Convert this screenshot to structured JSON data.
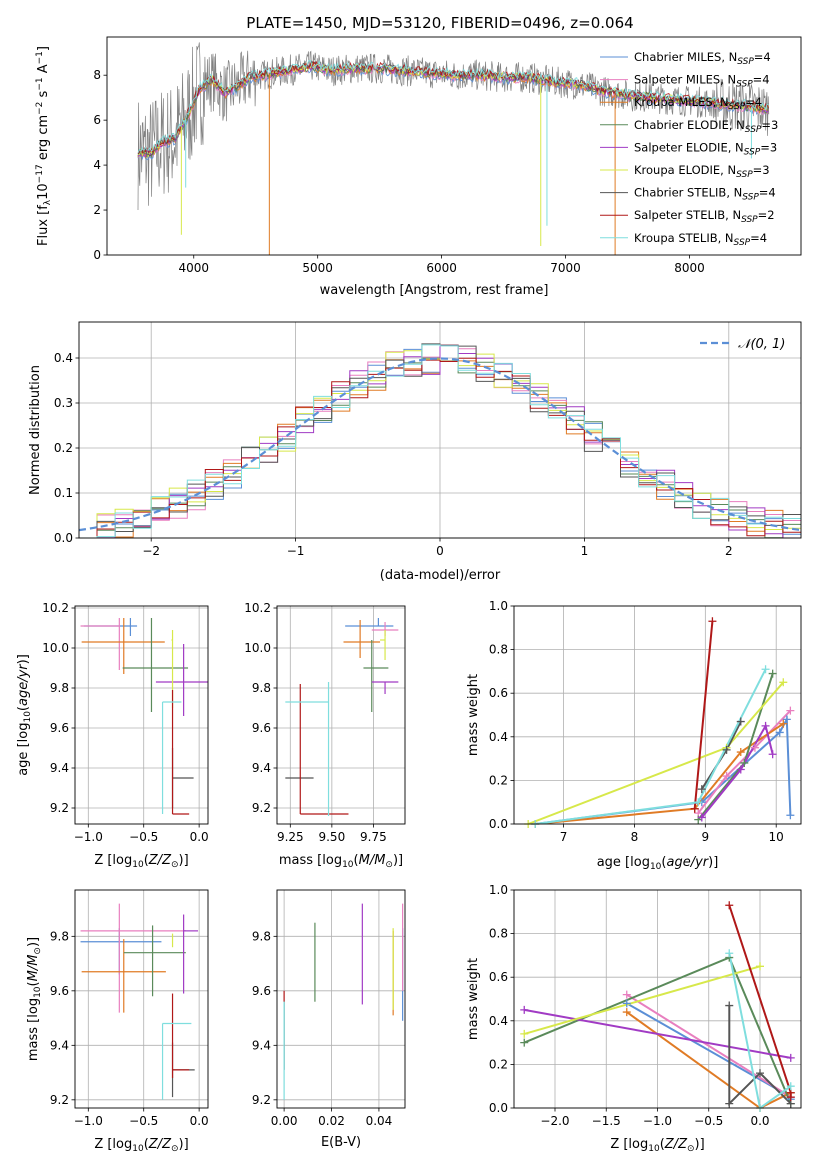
{
  "figure_title": "PLATE=1450, MJD=53120, FIBERID=0496, z=0.064",
  "colors": {
    "Chabrier MILES": "#5b8fd6",
    "Salpeter MILES": "#e87fbf",
    "Kroupa MILES": "#e07b25",
    "Chabrier ELODIE": "#5a8a5a",
    "Salpeter ELODIE": "#a13bc4",
    "Kroupa ELODIE": "#d7e84a",
    "Chabrier STELIB": "#555555",
    "Salpeter STELIB": "#b01818",
    "Kroupa STELIB": "#7fdede",
    "data": "#808080",
    "normal": "#5b8fd6"
  },
  "legend_labels": [
    {
      "key": "Chabrier MILES",
      "text": "Chabrier MILES, N",
      "nssp": "4"
    },
    {
      "key": "Salpeter MILES",
      "text": "Salpeter MILES, N",
      "nssp": "4"
    },
    {
      "key": "Kroupa MILES",
      "text": "Kroupa MILES, N",
      "nssp": "4"
    },
    {
      "key": "Chabrier ELODIE",
      "text": "Chabrier ELODIE, N",
      "nssp": "3"
    },
    {
      "key": "Salpeter ELODIE",
      "text": "Salpeter ELODIE, N",
      "nssp": "3"
    },
    {
      "key": "Kroupa ELODIE",
      "text": "Kroupa ELODIE, N",
      "nssp": "3"
    },
    {
      "key": "Chabrier STELIB",
      "text": "Chabrier STELIB, N",
      "nssp": "4"
    },
    {
      "key": "Salpeter STELIB",
      "text": "Salpeter STELIB, N",
      "nssp": "2"
    },
    {
      "key": "Kroupa STELIB",
      "text": "Kroupa STELIB, N",
      "nssp": "4"
    }
  ],
  "chart_data": [
    {
      "id": "spectrum",
      "type": "line",
      "xlabel": "wavelength [Angstrom, rest frame]",
      "ylabel": "Flux [f",
      "ylabel_parts": [
        "Flux [f",
        "λ",
        "10",
        "-17",
        " erg cm",
        "-2",
        " s",
        "-1",
        " A",
        "-1",
        "]"
      ],
      "xlim": [
        3300,
        8900
      ],
      "ylim": [
        0,
        9.7
      ],
      "xticks": [
        4000,
        5000,
        6000,
        7000,
        8000
      ],
      "yticks": [
        0,
        2,
        4,
        6,
        8
      ],
      "continuum": {
        "x": [
          3550,
          3650,
          3750,
          3850,
          3950,
          4050,
          4150,
          4250,
          4350,
          4450,
          4550,
          4650,
          4750,
          4850,
          4950,
          5100,
          5300,
          5500,
          5700,
          5900,
          6100,
          6300,
          6500,
          6700,
          6900,
          7100,
          7300,
          7500,
          7700,
          7900,
          8100,
          8300,
          8500,
          8600
        ],
        "y": [
          4.6,
          4.5,
          5.0,
          5.2,
          6.2,
          7.4,
          7.8,
          7.2,
          7.5,
          7.9,
          8.0,
          8.1,
          8.2,
          8.3,
          8.4,
          8.2,
          8.3,
          8.3,
          8.2,
          8.1,
          8.0,
          8.0,
          7.9,
          7.9,
          7.7,
          7.6,
          7.3,
          7.1,
          7.0,
          6.9,
          6.8,
          6.7,
          6.6,
          6.5
        ]
      },
      "absorption_lines": [
        {
          "x": 3900,
          "min": 0.9,
          "series": "Kroupa ELODIE"
        },
        {
          "x": 3935,
          "min": 3.0,
          "series": "Kroupa STELIB"
        },
        {
          "x": 4610,
          "min": 0.0,
          "series": "Kroupa MILES"
        },
        {
          "x": 6800,
          "min": 0.4,
          "series": "Kroupa ELODIE"
        },
        {
          "x": 6850,
          "min": 1.3,
          "series": "Kroupa STELIB"
        },
        {
          "x": 7400,
          "min": 0.0,
          "series": "Kroupa MILES"
        },
        {
          "x": 8500,
          "min": 4.3,
          "series": "Kroupa STELIB"
        }
      ]
    },
    {
      "id": "residuals",
      "type": "histogram",
      "xlabel": "(data-model)/error",
      "ylabel": "Normed distribution",
      "xlim": [
        -2.5,
        2.5
      ],
      "ylim": [
        0,
        0.48
      ],
      "xticks": [
        -2,
        -1,
        0,
        1,
        2
      ],
      "yticks": [
        0.0,
        0.1,
        0.2,
        0.3,
        0.4
      ],
      "legend": "𝒩(0, 1)",
      "normal_curve": {
        "x_range": [
          -2.5,
          2.5
        ],
        "mean": 0,
        "std": 1
      }
    },
    {
      "id": "age_vs_Z",
      "type": "errorbar",
      "xlabel": "Z [log",
      "xlabel_parts": [
        "Z [log",
        "10",
        "(Z/Z",
        "⊙",
        ")]"
      ],
      "ylabel": "age  [log",
      "ylabel_parts": [
        "age  [log",
        "10",
        "(age/yr)]"
      ],
      "xlim": [
        -1.12,
        0.08
      ],
      "ylim": [
        9.12,
        10.21
      ],
      "xticks": [
        -1.0,
        -0.5,
        0.0
      ],
      "yticks": [
        9.2,
        9.4,
        9.6,
        9.8,
        10.0,
        10.2
      ],
      "points": [
        {
          "series": "Chabrier MILES",
          "x": -0.62,
          "xerr": [
            0.42,
            0.06
          ],
          "y": 10.11,
          "yerr": [
            0.05,
            0.04
          ]
        },
        {
          "series": "Salpeter MILES",
          "x": -0.72,
          "xerr": [
            0.35,
            0.0
          ],
          "y": 10.11,
          "yerr": [
            0.22,
            0.04
          ]
        },
        {
          "series": "Kroupa MILES",
          "x": -0.68,
          "xerr": [
            0.38,
            0.37
          ],
          "y": 10.03,
          "yerr": [
            0.16,
            0.12
          ]
        },
        {
          "series": "Chabrier ELODIE",
          "x": -0.43,
          "xerr": [
            0.26,
            0.33
          ],
          "y": 9.9,
          "yerr": [
            0.22,
            0.25
          ]
        },
        {
          "series": "Salpeter ELODIE",
          "x": -0.14,
          "xerr": [
            0.25,
            0.26
          ],
          "y": 9.83,
          "yerr": [
            0.17,
            0.19
          ]
        },
        {
          "series": "Kroupa ELODIE",
          "x": -0.24,
          "xerr": [
            0.01,
            0.0
          ],
          "y": 10.04,
          "yerr": [
            0.34,
            0.05
          ]
        },
        {
          "series": "Chabrier STELIB",
          "x": -0.24,
          "xerr": [
            0.0,
            0.19
          ],
          "y": 9.35,
          "yerr": [
            0.15,
            0.15
          ]
        },
        {
          "series": "Salpeter STELIB",
          "x": -0.24,
          "xerr": [
            0.0,
            0.15
          ],
          "y": 9.17,
          "yerr": [
            0.0,
            0.62
          ]
        },
        {
          "series": "Kroupa STELIB",
          "x": -0.33,
          "xerr": [
            0.0,
            0.17
          ],
          "y": 9.73,
          "yerr": [
            0.56,
            0.0
          ]
        }
      ]
    },
    {
      "id": "age_vs_mass",
      "type": "errorbar",
      "xlabel": "mass [log",
      "xlabel_parts": [
        "mass [log",
        "10",
        "(M/M",
        "⊙",
        ")]"
      ],
      "xlim": [
        9.17,
        9.94
      ],
      "ylim": [
        9.12,
        10.21
      ],
      "xticks": [
        9.25,
        9.5,
        9.75
      ],
      "yticks": [
        9.2,
        9.4,
        9.6,
        9.8,
        10.0,
        10.2
      ],
      "points": [
        {
          "series": "Chabrier MILES",
          "x": 9.78,
          "xerr": [
            0.2,
            0.09
          ],
          "y": 10.11,
          "yerr": [
            0.0,
            0.04
          ]
        },
        {
          "series": "Salpeter MILES",
          "x": 9.82,
          "xerr": [
            0.08,
            0.08
          ],
          "y": 10.09,
          "yerr": [
            0.03,
            0.04
          ]
        },
        {
          "series": "Kroupa MILES",
          "x": 9.67,
          "xerr": [
            0.1,
            0.12
          ],
          "y": 10.03,
          "yerr": [
            0.08,
            0.11
          ]
        },
        {
          "series": "Chabrier ELODIE",
          "x": 9.74,
          "xerr": [
            0.05,
            0.1
          ],
          "y": 9.9,
          "yerr": [
            0.22,
            0.14
          ]
        },
        {
          "series": "Salpeter ELODIE",
          "x": 9.82,
          "xerr": [
            0.08,
            0.08
          ],
          "y": 9.83,
          "yerr": [
            0.06,
            0.0
          ]
        },
        {
          "series": "Kroupa ELODIE",
          "x": 9.82,
          "xerr": [
            0.03,
            0.0
          ],
          "y": 10.04,
          "yerr": [
            0.1,
            0.05
          ]
        },
        {
          "series": "Chabrier STELIB",
          "x": 9.31,
          "xerr": [
            0.09,
            0.08
          ],
          "y": 9.35,
          "yerr": [
            0.0,
            0.0
          ]
        },
        {
          "series": "Salpeter STELIB",
          "x": 9.31,
          "xerr": [
            0.0,
            0.29
          ],
          "y": 9.17,
          "yerr": [
            0.0,
            0.65
          ]
        },
        {
          "series": "Kroupa STELIB",
          "x": 9.48,
          "xerr": [
            0.26,
            0.0
          ],
          "y": 9.73,
          "yerr": [
            0.57,
            0.1
          ]
        }
      ]
    },
    {
      "id": "weight_vs_age",
      "type": "line",
      "xlabel": "age  [log",
      "xlabel_parts": [
        "age  [log",
        "10",
        "(age/yr)]"
      ],
      "ylabel": "mass weight",
      "xlim": [
        6.3,
        10.35
      ],
      "ylim": [
        0,
        1.0
      ],
      "xticks": [
        7,
        8,
        9,
        10
      ],
      "yticks": [
        0.0,
        0.2,
        0.4,
        0.6,
        0.8,
        1.0
      ],
      "series": [
        {
          "name": "Chabrier MILES",
          "x": [
            6.6,
            8.95,
            10.05,
            10.15,
            10.2
          ],
          "y": [
            0.0,
            0.1,
            0.42,
            0.48,
            0.04
          ]
        },
        {
          "name": "Salpeter MILES",
          "x": [
            8.9,
            9.3,
            9.7,
            10.2
          ],
          "y": [
            0.05,
            0.22,
            0.35,
            0.52
          ]
        },
        {
          "name": "Kroupa MILES",
          "x": [
            6.6,
            8.85,
            9.5,
            10.1
          ],
          "y": [
            0.0,
            0.07,
            0.33,
            0.46
          ]
        },
        {
          "name": "Chabrier ELODIE",
          "x": [
            8.9,
            9.55,
            9.95
          ],
          "y": [
            0.02,
            0.28,
            0.69
          ]
        },
        {
          "name": "Salpeter ELODIE",
          "x": [
            8.95,
            9.5,
            9.85,
            9.95
          ],
          "y": [
            0.03,
            0.25,
            0.45,
            0.32
          ]
        },
        {
          "name": "Kroupa ELODIE",
          "x": [
            6.5,
            9.3,
            10.1
          ],
          "y": [
            0.0,
            0.35,
            0.65
          ]
        },
        {
          "name": "Chabrier STELIB",
          "x": [
            8.95,
            9.3,
            9.5
          ],
          "y": [
            0.16,
            0.34,
            0.47
          ]
        },
        {
          "name": "Salpeter STELIB",
          "x": [
            8.85,
            9.1
          ],
          "y": [
            0.07,
            0.93
          ]
        },
        {
          "name": "Kroupa STELIB",
          "x": [
            6.6,
            8.9,
            9.85
          ],
          "y": [
            0.0,
            0.1,
            0.71
          ]
        }
      ]
    },
    {
      "id": "mass_vs_Z",
      "type": "errorbar",
      "xlabel": "Z [log",
      "xlabel_parts": [
        "Z [log",
        "10",
        "(Z/Z",
        "⊙",
        ")]"
      ],
      "ylabel": "mass [log",
      "ylabel_parts": [
        "mass [log",
        "10",
        "(M/M",
        "⊙",
        ")]"
      ],
      "xlim": [
        -1.12,
        0.08
      ],
      "ylim": [
        9.17,
        9.97
      ],
      "xticks": [
        -1.0,
        -0.5,
        0.0
      ],
      "yticks": [
        9.2,
        9.4,
        9.6,
        9.8
      ],
      "points": [
        {
          "series": "Chabrier MILES",
          "x": -0.72,
          "xerr": [
            0.35,
            0.38
          ],
          "y": 9.78,
          "yerr": [
            0.12,
            0.05
          ]
        },
        {
          "series": "Salpeter MILES",
          "x": -0.72,
          "xerr": [
            0.35,
            0.6
          ],
          "y": 9.82,
          "yerr": [
            0.3,
            0.1
          ]
        },
        {
          "series": "Kroupa MILES",
          "x": -0.68,
          "xerr": [
            0.38,
            0.38
          ],
          "y": 9.67,
          "yerr": [
            0.15,
            0.12
          ]
        },
        {
          "series": "Chabrier ELODIE",
          "x": -0.42,
          "xerr": [
            0.26,
            0.3
          ],
          "y": 9.74,
          "yerr": [
            0.16,
            0.1
          ]
        },
        {
          "series": "Salpeter ELODIE",
          "x": -0.14,
          "xerr": [
            0.0,
            0.13
          ],
          "y": 9.82,
          "yerr": [
            0.23,
            0.06
          ]
        },
        {
          "series": "Kroupa ELODIE",
          "x": -0.24,
          "xerr": [
            0.0,
            0.0
          ],
          "y": 9.81,
          "yerr": [
            0.05,
            0.0
          ]
        },
        {
          "series": "Chabrier STELIB",
          "x": -0.24,
          "xerr": [
            0.0,
            0.2
          ],
          "y": 9.31,
          "yerr": [
            0.1,
            0.1
          ]
        },
        {
          "series": "Salpeter STELIB",
          "x": -0.24,
          "xerr": [
            0.0,
            0.15
          ],
          "y": 9.31,
          "yerr": [
            0.03,
            0.28
          ]
        },
        {
          "series": "Kroupa STELIB",
          "x": -0.33,
          "xerr": [
            0.0,
            0.26
          ],
          "y": 9.48,
          "yerr": [
            0.28,
            0.0
          ]
        }
      ]
    },
    {
      "id": "mass_vs_EBV",
      "type": "errorbar",
      "xlabel": "E(B-V)",
      "xlim": [
        -0.003,
        0.051
      ],
      "ylim": [
        9.17,
        9.97
      ],
      "xticks": [
        0.0,
        0.02,
        0.04
      ],
      "yticks": [
        9.2,
        9.4,
        9.6,
        9.8
      ],
      "points": [
        {
          "series": "Chabrier MILES",
          "x": 0.05,
          "yrange": [
            9.49,
            9.83
          ]
        },
        {
          "series": "Salpeter MILES",
          "x": 0.05,
          "yrange": [
            9.6,
            9.92
          ]
        },
        {
          "series": "Kroupa MILES",
          "x": 0.046,
          "yrange": [
            9.51,
            9.82
          ]
        },
        {
          "series": "Chabrier ELODIE",
          "x": 0.013,
          "yrange": [
            9.56,
            9.85
          ]
        },
        {
          "series": "Salpeter ELODIE",
          "x": 0.033,
          "yrange": [
            9.55,
            9.92
          ]
        },
        {
          "series": "Kroupa ELODIE",
          "x": 0.046,
          "yrange": [
            9.53,
            9.83
          ]
        },
        {
          "series": "Chabrier STELIB",
          "x": 0.0,
          "yrange": [
            9.31,
            9.56
          ]
        },
        {
          "series": "Salpeter STELIB",
          "x": 0.0,
          "yrange": [
            9.56,
            9.6
          ]
        },
        {
          "series": "Kroupa STELIB",
          "x": 0.0,
          "yrange": [
            9.2,
            9.56
          ]
        }
      ]
    },
    {
      "id": "weight_vs_Z",
      "type": "line",
      "xlabel": "Z [log",
      "xlabel_parts": [
        "Z [log",
        "10",
        "(Z/Z",
        "⊙",
        ")]"
      ],
      "ylabel": "mass weight",
      "xlim": [
        -2.4,
        0.4
      ],
      "ylim": [
        0,
        1.0
      ],
      "xticks": [
        -2.0,
        -1.5,
        -1.0,
        -0.5,
        0.0
      ],
      "yticks": [
        0.0,
        0.2,
        0.4,
        0.6,
        0.8,
        1.0
      ],
      "series": [
        {
          "name": "Chabrier MILES",
          "x": [
            -1.3,
            0.3,
            0.3
          ],
          "y": [
            0.48,
            0.05,
            0.04
          ]
        },
        {
          "name": "Salpeter MILES",
          "x": [
            -1.3,
            0.3
          ],
          "y": [
            0.52,
            0.05
          ]
        },
        {
          "name": "Kroupa MILES",
          "x": [
            -1.3,
            -0.0,
            0.3
          ],
          "y": [
            0.44,
            0.0,
            0.07
          ]
        },
        {
          "name": "Chabrier ELODIE",
          "x": [
            -2.3,
            -0.3,
            0.3
          ],
          "y": [
            0.3,
            0.69,
            0.02
          ]
        },
        {
          "name": "Salpeter ELODIE",
          "x": [
            -2.3,
            0.3
          ],
          "y": [
            0.45,
            0.23
          ]
        },
        {
          "name": "Kroupa ELODIE",
          "x": [
            -2.3,
            0.0
          ],
          "y": [
            0.34,
            0.65
          ]
        },
        {
          "name": "Chabrier STELIB",
          "x": [
            -0.3,
            -0.3,
            0.0,
            0.3
          ],
          "y": [
            0.47,
            0.02,
            0.16,
            0.02
          ]
        },
        {
          "name": "Salpeter STELIB",
          "x": [
            -0.3,
            0.3,
            0.3
          ],
          "y": [
            0.93,
            0.07,
            0.05
          ]
        },
        {
          "name": "Kroupa STELIB",
          "x": [
            -0.3,
            0.0,
            0.3
          ],
          "y": [
            0.71,
            0.0,
            0.1
          ]
        }
      ]
    }
  ]
}
